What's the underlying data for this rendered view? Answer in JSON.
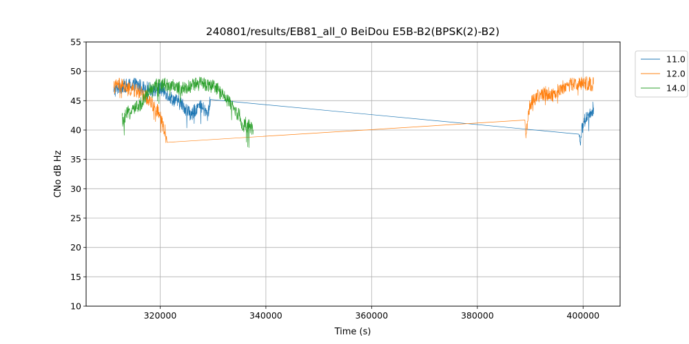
{
  "chart_data": {
    "type": "line",
    "title": "240801/results/EB81_all_0 BeiDou E5B-B2(BPSK(2)-B2)",
    "xlabel": "Time (s)",
    "ylabel": "CNo dB Hz",
    "xlim": [
      306000,
      407000
    ],
    "ylim": [
      10,
      55
    ],
    "x_ticks": [
      320000,
      340000,
      360000,
      380000,
      400000
    ],
    "y_ticks": [
      10,
      15,
      20,
      25,
      30,
      35,
      40,
      45,
      50,
      55
    ],
    "grid": true,
    "legend_position": "upper-right-outside",
    "series": [
      {
        "name": "11.0",
        "color": "#1f77b4",
        "points": [
          [
            311200,
            46.5
          ],
          [
            312000,
            47.2
          ],
          [
            313000,
            47.5
          ],
          [
            314000,
            47.6
          ],
          [
            315000,
            47.8
          ],
          [
            316000,
            47.6
          ],
          [
            317000,
            47.2
          ],
          [
            318000,
            47.0
          ],
          [
            319000,
            46.8
          ],
          [
            320000,
            47.0
          ],
          [
            321000,
            46.5
          ],
          [
            322000,
            45.5
          ],
          [
            323000,
            45.0
          ],
          [
            324000,
            44.5
          ],
          [
            325000,
            43.5
          ],
          [
            326000,
            42.5
          ],
          [
            327000,
            44.0
          ],
          [
            328000,
            43.8
          ],
          [
            329000,
            42.5
          ],
          [
            329500,
            45.2
          ],
          [
            399200,
            39.3
          ],
          [
            399400,
            38.0
          ],
          [
            399700,
            39.5
          ],
          [
            400000,
            41.0
          ],
          [
            400500,
            42.0
          ],
          [
            401000,
            42.8
          ],
          [
            401500,
            43.2
          ],
          [
            402000,
            43.8
          ]
        ]
      },
      {
        "name": "12.0",
        "color": "#ff7f0e",
        "points": [
          [
            311200,
            47.2
          ],
          [
            312000,
            47.8
          ],
          [
            313000,
            47.5
          ],
          [
            314000,
            47.0
          ],
          [
            315000,
            46.8
          ],
          [
            316000,
            46.5
          ],
          [
            317000,
            46.0
          ],
          [
            318000,
            45.0
          ],
          [
            319000,
            44.0
          ],
          [
            320000,
            42.5
          ],
          [
            320500,
            41.0
          ],
          [
            321000,
            39.5
          ],
          [
            321300,
            37.9
          ],
          [
            389000,
            41.7
          ],
          [
            389100,
            40.0
          ],
          [
            389300,
            39.5
          ],
          [
            389600,
            42.5
          ],
          [
            390000,
            44.5
          ],
          [
            391000,
            45.5
          ],
          [
            392000,
            46.0
          ],
          [
            393000,
            46.3
          ],
          [
            394000,
            46.0
          ],
          [
            395000,
            46.5
          ],
          [
            396000,
            47.2
          ],
          [
            397000,
            47.6
          ],
          [
            398000,
            47.8
          ],
          [
            399000,
            47.9
          ],
          [
            400000,
            48.0
          ],
          [
            401000,
            47.9
          ],
          [
            402000,
            47.8
          ]
        ]
      },
      {
        "name": "14.0",
        "color": "#2ca02c",
        "points": [
          [
            312800,
            42.5
          ],
          [
            313000,
            41.0
          ],
          [
            313500,
            42.5
          ],
          [
            314000,
            43.0
          ],
          [
            315000,
            43.5
          ],
          [
            316000,
            44.0
          ],
          [
            317000,
            45.5
          ],
          [
            318000,
            47.0
          ],
          [
            319000,
            47.5
          ],
          [
            320000,
            47.7
          ],
          [
            321000,
            47.8
          ],
          [
            322000,
            47.6
          ],
          [
            323000,
            47.3
          ],
          [
            324000,
            47.0
          ],
          [
            325000,
            47.2
          ],
          [
            326000,
            47.6
          ],
          [
            327000,
            47.8
          ],
          [
            328000,
            47.9
          ],
          [
            329000,
            47.7
          ],
          [
            330000,
            47.4
          ],
          [
            331000,
            46.8
          ],
          [
            332000,
            45.8
          ],
          [
            333000,
            44.8
          ],
          [
            334000,
            43.5
          ],
          [
            335000,
            42.5
          ],
          [
            335700,
            40.0
          ],
          [
            336000,
            41.5
          ],
          [
            336500,
            40.5
          ],
          [
            337000,
            41.0
          ],
          [
            337600,
            40.0
          ]
        ]
      }
    ]
  }
}
